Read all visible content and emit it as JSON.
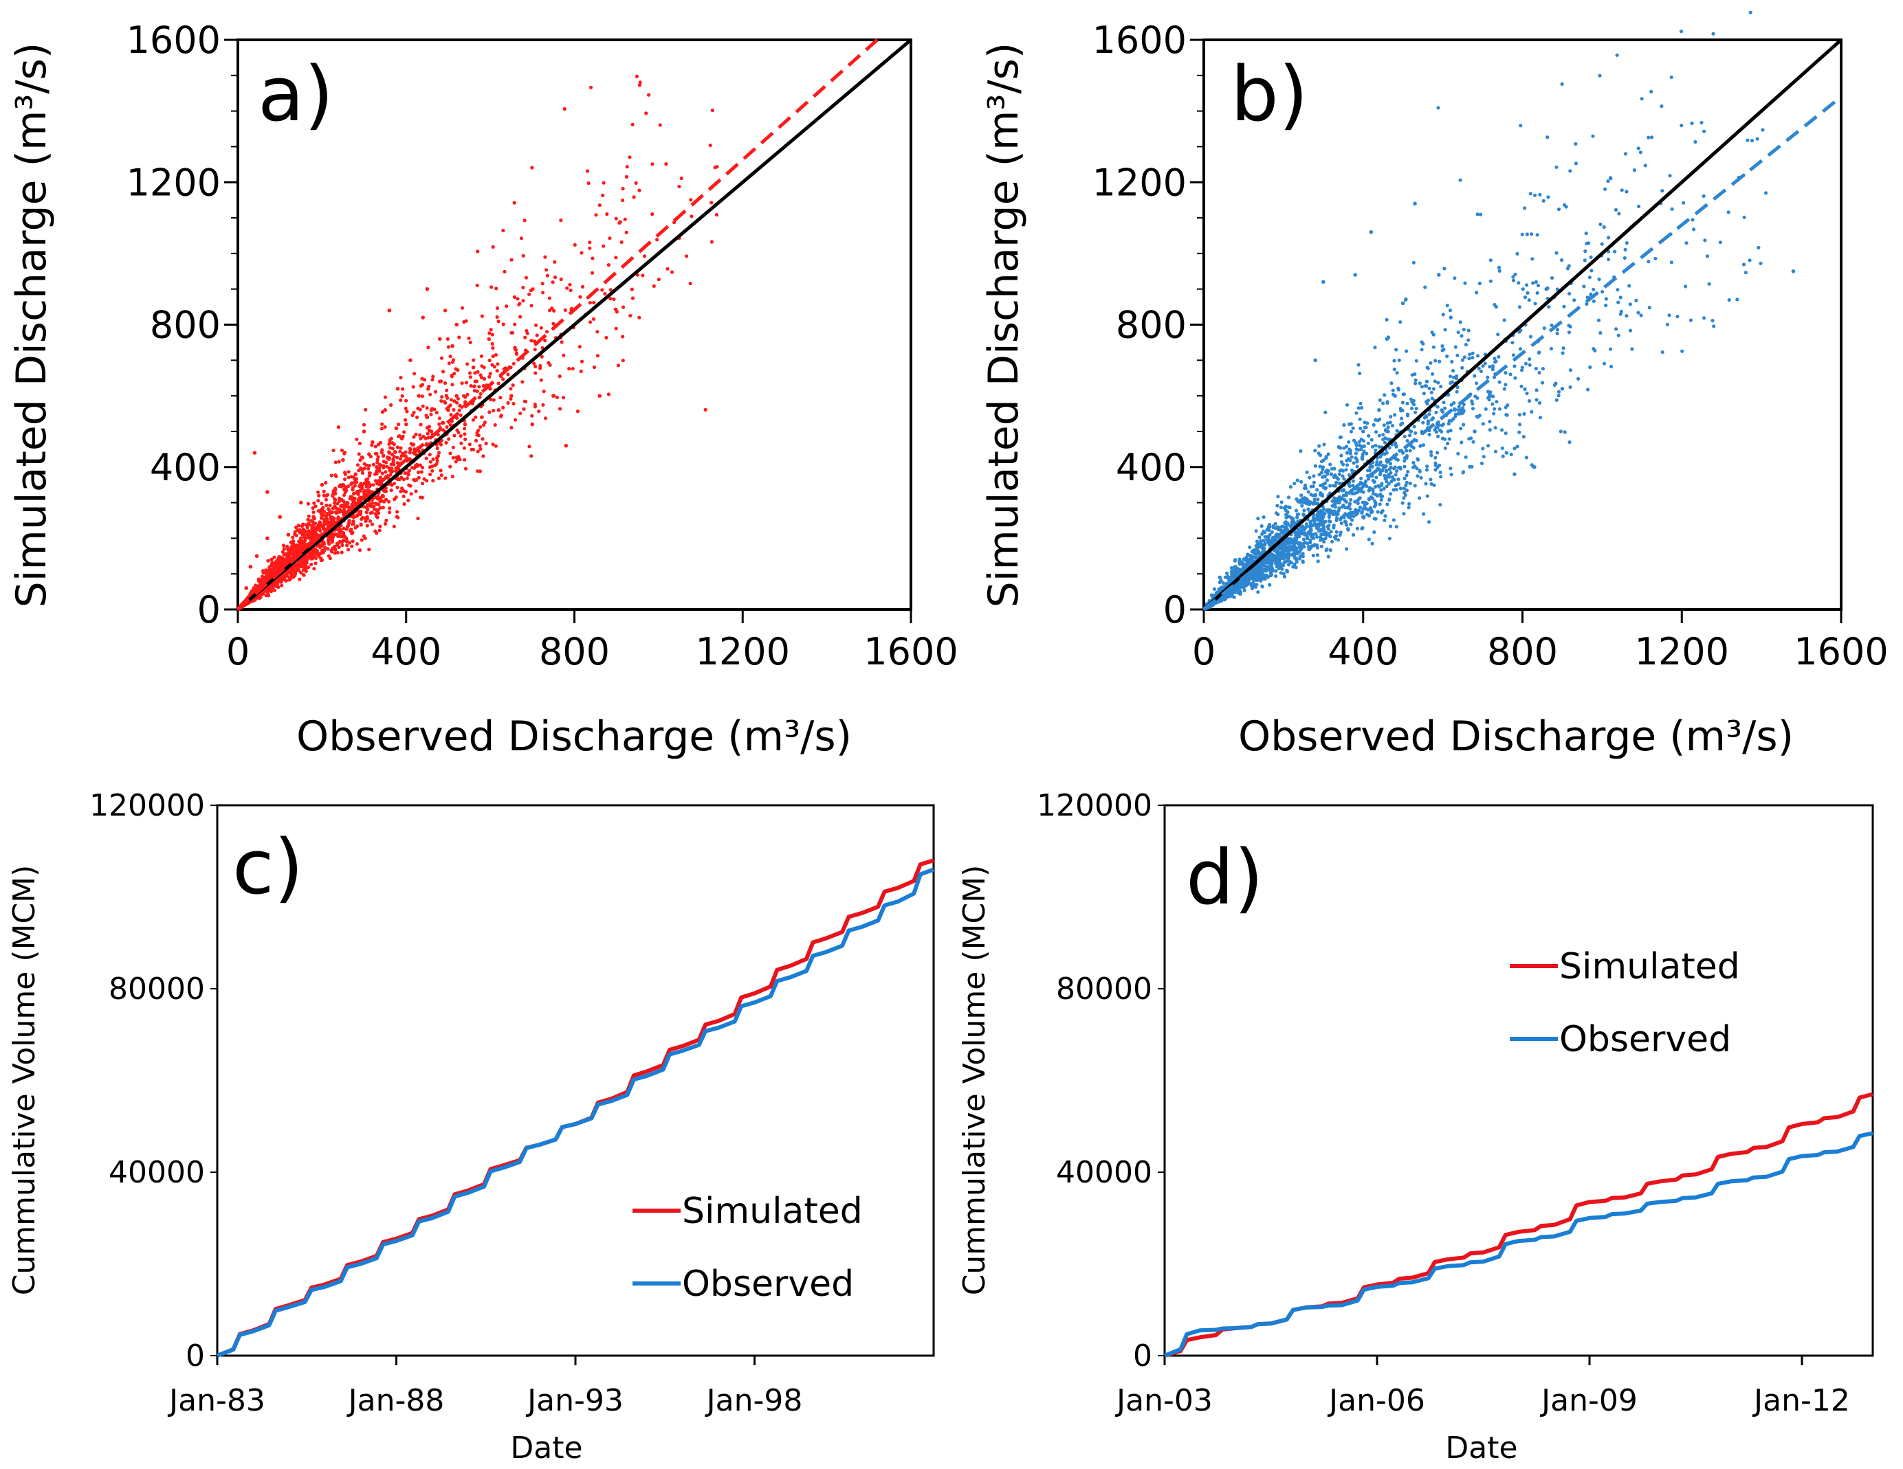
{
  "chart_data": [
    {
      "panel": "a)",
      "type": "scatter",
      "xlabel": "Observed Discharge (m³/s)",
      "ylabel": "Simulated Discharge (m³/s)",
      "xlim": [
        0,
        1600
      ],
      "ylim": [
        0,
        1600
      ],
      "xticks": [
        "0",
        "400",
        "800",
        "1200",
        "1600"
      ],
      "yticks": [
        "0",
        "400",
        "800",
        "1200",
        "1600"
      ],
      "point_color": "#ff1a1a",
      "one_to_one_line": {
        "x": [
          0,
          1600
        ],
        "y": [
          0,
          1600
        ],
        "color": "#000000",
        "style": "solid"
      },
      "trend_line": {
        "x": [
          0,
          1520
        ],
        "y": [
          0,
          1600
        ],
        "color": "#ff1a1a",
        "style": "dashed"
      },
      "points": [
        [
          20,
          60
        ],
        [
          30,
          120
        ],
        [
          45,
          150
        ],
        [
          60,
          90
        ],
        [
          70,
          200
        ],
        [
          80,
          140
        ],
        [
          90,
          110
        ],
        [
          100,
          260
        ],
        [
          110,
          170
        ],
        [
          120,
          210
        ],
        [
          140,
          180
        ],
        [
          150,
          300
        ],
        [
          160,
          220
        ],
        [
          180,
          260
        ],
        [
          200,
          350
        ],
        [
          210,
          250
        ],
        [
          230,
          310
        ],
        [
          250,
          420
        ],
        [
          260,
          300
        ],
        [
          280,
          380
        ],
        [
          300,
          330
        ],
        [
          320,
          470
        ],
        [
          330,
          400
        ],
        [
          350,
          560
        ],
        [
          360,
          440
        ],
        [
          380,
          620
        ],
        [
          390,
          480
        ],
        [
          400,
          520
        ],
        [
          410,
          700
        ],
        [
          420,
          450
        ],
        [
          430,
          600
        ],
        [
          440,
          820
        ],
        [
          450,
          540
        ],
        [
          460,
          500
        ],
        [
          480,
          640
        ],
        [
          500,
          560
        ],
        [
          510,
          740
        ],
        [
          520,
          600
        ],
        [
          540,
          520
        ],
        [
          560,
          680
        ],
        [
          580,
          540
        ],
        [
          600,
          620
        ],
        [
          620,
          560
        ],
        [
          650,
          600
        ],
        [
          700,
          520
        ],
        [
          750,
          600
        ],
        [
          780,
          460
        ],
        [
          860,
          600
        ],
        [
          360,
          840
        ],
        [
          450,
          900
        ],
        [
          300,
          500
        ],
        [
          250,
          350
        ],
        [
          200,
          280
        ],
        [
          150,
          200
        ],
        [
          100,
          140
        ],
        [
          50,
          80
        ],
        [
          40,
          440
        ],
        [
          70,
          330
        ],
        [
          520,
          800
        ],
        [
          480,
          760
        ]
      ],
      "point_spread": {
        "alpha": 1.05,
        "sigma": 0.2,
        "density_scale": 650
      }
    },
    {
      "panel": "b)",
      "type": "scatter",
      "xlabel": "Observed Discharge (m³/s)",
      "ylabel": "Simulated Discharge (m³/s)",
      "xlim": [
        0,
        1600
      ],
      "ylim": [
        0,
        1600
      ],
      "xticks": [
        "0",
        "400",
        "800",
        "1200",
        "1600"
      ],
      "yticks": [
        "0",
        "400",
        "800",
        "1200",
        "1600"
      ],
      "point_color": "#2e86d1",
      "one_to_one_line": {
        "x": [
          0,
          1600
        ],
        "y": [
          0,
          1600
        ],
        "color": "#000000",
        "style": "solid"
      },
      "trend_line": {
        "x": [
          0,
          1600
        ],
        "y": [
          0,
          1440
        ],
        "color": "#2e86d1",
        "style": "dashed"
      },
      "points": [
        [
          20,
          40
        ],
        [
          40,
          90
        ],
        [
          60,
          60
        ],
        [
          80,
          120
        ],
        [
          100,
          80
        ],
        [
          120,
          150
        ],
        [
          150,
          110
        ],
        [
          180,
          200
        ],
        [
          200,
          160
        ],
        [
          230,
          240
        ],
        [
          260,
          200
        ],
        [
          280,
          320
        ],
        [
          300,
          260
        ],
        [
          320,
          380
        ],
        [
          340,
          300
        ],
        [
          360,
          440
        ],
        [
          380,
          340
        ],
        [
          400,
          500
        ],
        [
          420,
          380
        ],
        [
          440,
          560
        ],
        [
          460,
          420
        ],
        [
          480,
          600
        ],
        [
          500,
          440
        ],
        [
          530,
          1140
        ],
        [
          420,
          1060
        ],
        [
          380,
          940
        ],
        [
          590,
          940
        ],
        [
          620,
          820
        ],
        [
          520,
          500
        ],
        [
          560,
          640
        ],
        [
          600,
          480
        ],
        [
          640,
          560
        ],
        [
          680,
          500
        ],
        [
          720,
          600
        ],
        [
          760,
          440
        ],
        [
          780,
          380
        ],
        [
          830,
          400
        ],
        [
          860,
          900
        ],
        [
          900,
          620
        ],
        [
          1480,
          950
        ],
        [
          300,
          920
        ],
        [
          280,
          700
        ],
        [
          460,
          760
        ],
        [
          500,
          860
        ]
      ],
      "point_spread": {
        "alpha": 0.92,
        "sigma": 0.25,
        "density_scale": 800
      }
    },
    {
      "panel": "c)",
      "type": "line",
      "xlabel": "Date",
      "ylabel": "Cummulative Volume (MCM)",
      "xlim": [
        1983.0,
        2003.0
      ],
      "ylim": [
        0,
        120000
      ],
      "xticks": [
        {
          "label": "Jan-83",
          "value": 1983.0
        },
        {
          "label": "Jan-88",
          "value": 1988.0
        },
        {
          "label": "Jan-93",
          "value": 1993.0
        },
        {
          "label": "Jan-98",
          "value": 1998.0
        }
      ],
      "yticks": [
        "0",
        "40000",
        "80000",
        "120000"
      ],
      "legend": {
        "position": "bottom-right"
      },
      "series": [
        {
          "name": "Simulated",
          "color": "#e8141c",
          "x": [
            1983.0,
            1984.0,
            1985.0,
            1986.0,
            1987.0,
            1988.0,
            1989.0,
            1990.0,
            1991.0,
            1992.0,
            1993.0,
            1994.0,
            1995.0,
            1996.0,
            1997.0,
            1998.0,
            1999.0,
            2000.0,
            2001.0,
            2002.0,
            2003.0
          ],
          "y": [
            0,
            5500,
            11000,
            15500,
            20500,
            25500,
            30500,
            36000,
            41500,
            46000,
            50500,
            56000,
            62000,
            67500,
            73000,
            79000,
            85000,
            91000,
            96500,
            102000,
            108000
          ]
        },
        {
          "name": "Observed",
          "color": "#1a7fd4",
          "x": [
            1983.0,
            1984.0,
            1985.0,
            1986.0,
            1987.0,
            1988.0,
            1989.0,
            1990.0,
            1991.0,
            1992.0,
            1993.0,
            1994.0,
            1995.0,
            1996.0,
            1997.0,
            1998.0,
            1999.0,
            2000.0,
            2001.0,
            2002.0,
            2003.0
          ],
          "y": [
            0,
            5300,
            10600,
            15000,
            20000,
            25000,
            30000,
            35500,
            41000,
            46000,
            50500,
            55500,
            61000,
            66500,
            71500,
            77000,
            82500,
            88000,
            93500,
            99000,
            106000
          ]
        }
      ]
    },
    {
      "panel": "d)",
      "type": "line",
      "xlabel": "Date",
      "ylabel": "Cummulative Volume (MCM)",
      "xlim": [
        2003.0,
        2013.0
      ],
      "ylim": [
        0,
        120000
      ],
      "xticks": [
        {
          "label": "Jan-03",
          "value": 2003.0
        },
        {
          "label": "Jan-06",
          "value": 2006.0
        },
        {
          "label": "Jan-09",
          "value": 2009.0
        },
        {
          "label": "Jan-12",
          "value": 2012.0
        }
      ],
      "yticks": [
        "0",
        "40000",
        "80000",
        "120000"
      ],
      "legend": {
        "position": "top-right"
      },
      "series": [
        {
          "name": "Simulated",
          "color": "#e8141c",
          "x": [
            2003.0,
            2003.5,
            2004.0,
            2004.5,
            2005.0,
            2005.5,
            2006.0,
            2006.5,
            2007.0,
            2007.5,
            2008.0,
            2008.5,
            2009.0,
            2009.5,
            2010.0,
            2010.5,
            2011.0,
            2011.5,
            2012.0,
            2012.5,
            2013.0
          ],
          "y": [
            0,
            4000,
            6000,
            7000,
            10500,
            11500,
            15500,
            17000,
            21000,
            22500,
            27000,
            28500,
            33500,
            34500,
            38000,
            39500,
            44000,
            45500,
            50500,
            52000,
            57000
          ]
        },
        {
          "name": "Observed",
          "color": "#1a7fd4",
          "x": [
            2003.0,
            2003.5,
            2004.0,
            2004.5,
            2005.0,
            2005.5,
            2006.0,
            2006.5,
            2007.0,
            2007.5,
            2008.0,
            2008.5,
            2009.0,
            2009.5,
            2010.0,
            2010.5,
            2011.0,
            2011.5,
            2012.0,
            2012.5,
            2013.0
          ],
          "y": [
            0,
            5500,
            6000,
            7000,
            10500,
            11000,
            15000,
            16000,
            19500,
            20500,
            25000,
            26000,
            30000,
            31000,
            33500,
            34500,
            38000,
            39000,
            43500,
            44500,
            48500
          ]
        }
      ]
    }
  ]
}
